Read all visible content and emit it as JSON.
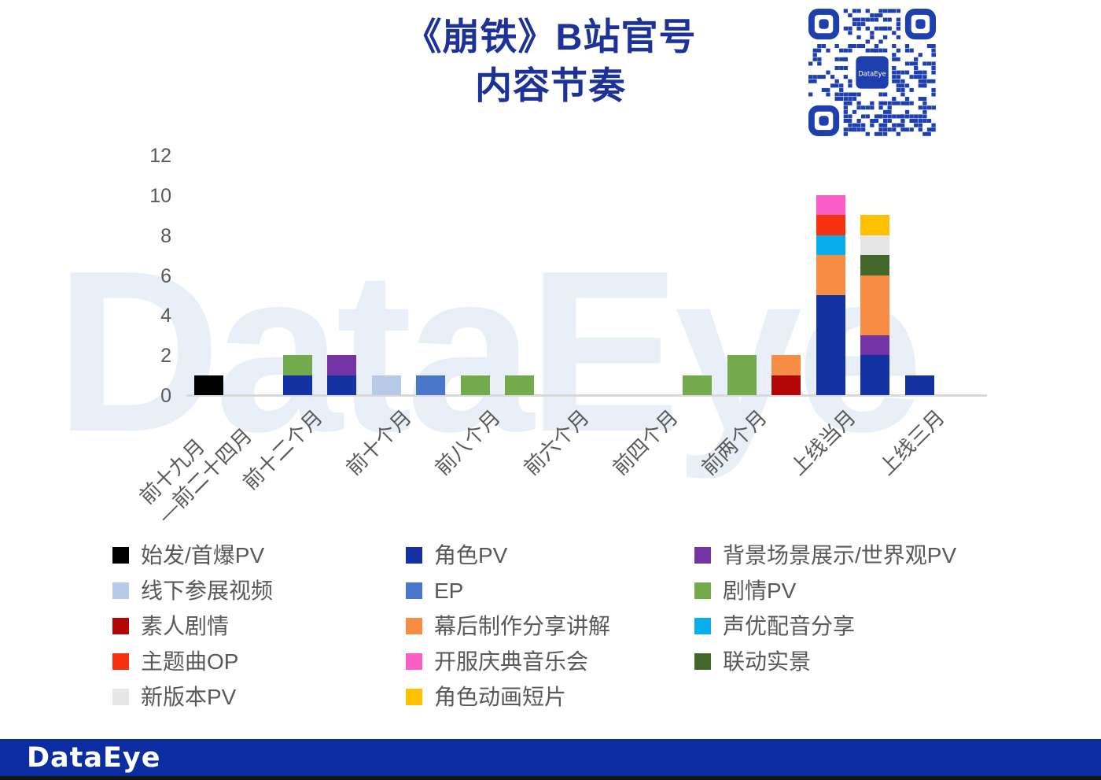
{
  "title": {
    "line1": "《崩铁》B站官号",
    "line2": "内容节奏"
  },
  "watermark_text": "DataEye",
  "qr": {
    "center_label": "DataEye"
  },
  "footer": {
    "brand": "DataEye"
  },
  "colors": {
    "title_blue": "#1d3298",
    "footer_blue": "#0b2da1",
    "axis_gray": "#d9d9d9",
    "text_gray": "#595959",
    "watermark_blue": "#e9eff8",
    "qr_blue": "#1e3fae"
  },
  "chart_data": {
    "type": "bar",
    "stacked": true,
    "title": "《崩铁》B站官号内容节奏",
    "xlabel": "",
    "ylabel": "",
    "ylim": [
      0,
      12
    ],
    "yticks": [
      0,
      2,
      4,
      6,
      8,
      10,
      12
    ],
    "grid": false,
    "legend_position": "bottom",
    "categories": [
      "前十九月\n—前二十四月",
      "",
      "前十二个月",
      "",
      "前十个月",
      "",
      "前八个月",
      "",
      "前六个月",
      "",
      "前四个月",
      "",
      "前两个月",
      "",
      "上线当月",
      "",
      "上线三月"
    ],
    "series": [
      {
        "name": "始发/首爆PV",
        "color": "#000000",
        "values": [
          1,
          0,
          0,
          0,
          0,
          0,
          0,
          0,
          0,
          0,
          0,
          0,
          0,
          0,
          0,
          0,
          0
        ]
      },
      {
        "name": "素人剧情",
        "color": "#b30606",
        "values": [
          0,
          0,
          0,
          0,
          0,
          0,
          0,
          0,
          0,
          0,
          0,
          0,
          0,
          1,
          0,
          0,
          0
        ]
      },
      {
        "name": "角色PV",
        "color": "#1532a4",
        "values": [
          0,
          0,
          1,
          1,
          0,
          0,
          0,
          0,
          0,
          0,
          0,
          0,
          0,
          0,
          5,
          2,
          1
        ]
      },
      {
        "name": "背景场景展示/世界观PV",
        "color": "#7434a4",
        "values": [
          0,
          0,
          0,
          1,
          0,
          0,
          0,
          0,
          0,
          0,
          0,
          0,
          0,
          0,
          0,
          1,
          0
        ]
      },
      {
        "name": "线下参展视频",
        "color": "#b8c9e8",
        "values": [
          0,
          0,
          0,
          0,
          1,
          0,
          0,
          0,
          0,
          0,
          0,
          0,
          0,
          0,
          0,
          0,
          0
        ]
      },
      {
        "name": "EP",
        "color": "#4a77c9",
        "values": [
          0,
          0,
          0,
          0,
          0,
          1,
          0,
          0,
          0,
          0,
          0,
          0,
          0,
          0,
          0,
          0,
          0
        ]
      },
      {
        "name": "剧情PV",
        "color": "#73ab4c",
        "values": [
          0,
          0,
          1,
          0,
          0,
          0,
          1,
          1,
          0,
          0,
          0,
          1,
          2,
          0,
          0,
          0,
          0
        ]
      },
      {
        "name": "幕后制作分享讲解",
        "color": "#f78d45",
        "values": [
          0,
          0,
          0,
          0,
          0,
          0,
          0,
          0,
          0,
          0,
          0,
          0,
          0,
          1,
          2,
          3,
          0
        ]
      },
      {
        "name": "声优配音分享",
        "color": "#0aaeee",
        "values": [
          0,
          0,
          0,
          0,
          0,
          0,
          0,
          0,
          0,
          0,
          0,
          0,
          0,
          0,
          1,
          0,
          0
        ]
      },
      {
        "name": "主题曲OP",
        "color": "#f63110",
        "values": [
          0,
          0,
          0,
          0,
          0,
          0,
          0,
          0,
          0,
          0,
          0,
          0,
          0,
          0,
          1,
          0,
          0
        ]
      },
      {
        "name": "开服庆典音乐会",
        "color": "#fb5ec7",
        "values": [
          0,
          0,
          0,
          0,
          0,
          0,
          0,
          0,
          0,
          0,
          0,
          0,
          0,
          0,
          1,
          0,
          0
        ]
      },
      {
        "name": "联动实景",
        "color": "#44682c",
        "values": [
          0,
          0,
          0,
          0,
          0,
          0,
          0,
          0,
          0,
          0,
          0,
          0,
          0,
          0,
          0,
          1,
          0
        ]
      },
      {
        "name": "新版本PV",
        "color": "#e7e6e6",
        "values": [
          0,
          0,
          0,
          0,
          0,
          0,
          0,
          0,
          0,
          0,
          0,
          0,
          0,
          0,
          0,
          1,
          0
        ]
      },
      {
        "name": "角色动画短片",
        "color": "#ffc000",
        "values": [
          0,
          0,
          0,
          0,
          0,
          0,
          0,
          0,
          0,
          0,
          0,
          0,
          0,
          0,
          0,
          1,
          0
        ]
      }
    ]
  },
  "legend": {
    "columns": [
      [
        "始发/首爆PV",
        "线下参展视频",
        "素人剧情",
        "主题曲OP",
        "新版本PV"
      ],
      [
        "角色PV",
        "EP",
        "幕后制作分享讲解",
        "开服庆典音乐会",
        "角色动画短片"
      ],
      [
        "背景场景展示/世界观PV",
        "剧情PV",
        "声优配音分享",
        "联动实景"
      ]
    ]
  }
}
